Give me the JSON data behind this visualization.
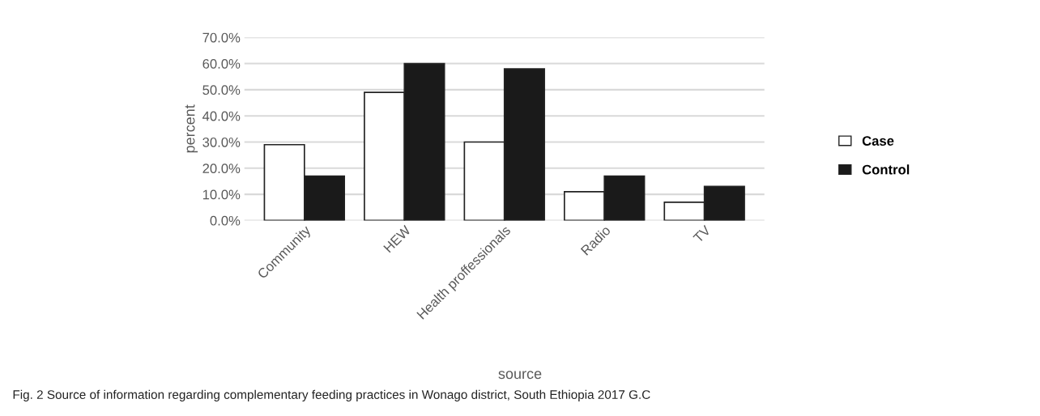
{
  "chart_data": {
    "type": "bar",
    "xlabel": "source",
    "ylabel": "percent",
    "categories": [
      "Community",
      "HEW",
      "Health proffessionals",
      "Radio",
      "TV"
    ],
    "series": [
      {
        "name": "Case",
        "color": "#ffffff",
        "values": [
          29,
          49,
          30,
          11,
          7
        ]
      },
      {
        "name": "Control",
        "color": "#1a1a1a",
        "values": [
          17,
          60,
          58,
          17,
          13
        ]
      }
    ],
    "ylim": [
      0,
      70
    ],
    "yticks": [
      {
        "value": 0,
        "label": "0.0%"
      },
      {
        "value": 10,
        "label": "10.0%"
      },
      {
        "value": 20,
        "label": "20.0%"
      },
      {
        "value": 30,
        "label": "30.0%"
      },
      {
        "value": 40,
        "label": "40.0%"
      },
      {
        "value": 50,
        "label": "50.0%"
      },
      {
        "value": 60,
        "label": "60.0%"
      },
      {
        "value": 70,
        "label": "70.0%"
      }
    ],
    "grid": "y",
    "legend": "right",
    "annotations": [
      "Fig. 2 Source of information regarding complementary feeding practices in Wonago district, South Ethiopia 2017 G.C"
    ]
  }
}
